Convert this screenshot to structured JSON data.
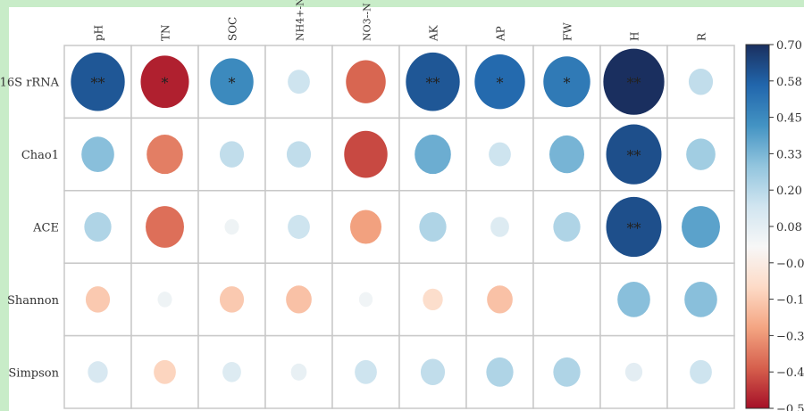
{
  "chart_data": {
    "type": "heatmap",
    "subtype": "correlation-circle-matrix",
    "columns": [
      "pH",
      "TN",
      "SOC",
      "NH4+-N",
      "NO3--N",
      "AK",
      "AP",
      "FW",
      "H",
      "R"
    ],
    "rows": [
      "16S rRNA",
      "Chao1",
      "ACE",
      "Shannon",
      "Simpson"
    ],
    "values": [
      [
        0.6,
        -0.52,
        0.45,
        0.15,
        -0.4,
        0.6,
        0.55,
        0.5,
        0.7,
        0.18
      ],
      [
        0.3,
        -0.35,
        0.18,
        0.18,
        -0.45,
        0.35,
        0.15,
        0.33,
        0.62,
        0.25
      ],
      [
        0.22,
        -0.38,
        0.04,
        0.15,
        -0.28,
        0.22,
        0.1,
        0.22,
        0.62,
        0.38
      ],
      [
        -0.18,
        0.04,
        -0.18,
        -0.2,
        0.03,
        -0.12,
        -0.2,
        0.0,
        0.3,
        0.3
      ],
      [
        0.12,
        -0.15,
        0.1,
        0.06,
        0.15,
        0.18,
        0.22,
        0.22,
        0.08,
        0.15
      ]
    ],
    "significance": [
      [
        "**",
        "*",
        "*",
        "",
        "",
        "**",
        "*",
        "*",
        "**",
        ""
      ],
      [
        "",
        "",
        "",
        "",
        "",
        "",
        "",
        "",
        "**",
        ""
      ],
      [
        "",
        "",
        "",
        "",
        "",
        "",
        "",
        "",
        "**",
        ""
      ],
      [
        "",
        "",
        "",
        "",
        "",
        "",
        "",
        "",
        "",
        ""
      ],
      [
        "",
        "",
        "",
        "",
        "",
        "",
        "",
        "",
        "",
        ""
      ]
    ],
    "colorbar": {
      "range": [
        -0.55,
        0.7
      ],
      "tick_labels": [
        "0.70",
        "0.58",
        "0.45",
        "0.33",
        "0.20",
        "0.08",
        "−0.0",
        "−0.1",
        "−0.3",
        "−0.4",
        "−0.5"
      ],
      "colormap": "RdBu",
      "colors": [
        "#a50f27",
        "#d6604d",
        "#f4a582",
        "#fddbc7",
        "#f7f7f7",
        "#d1e5f0",
        "#92c5de",
        "#4393c3",
        "#2166ac",
        "#1a2f5f"
      ]
    },
    "grid": true
  }
}
